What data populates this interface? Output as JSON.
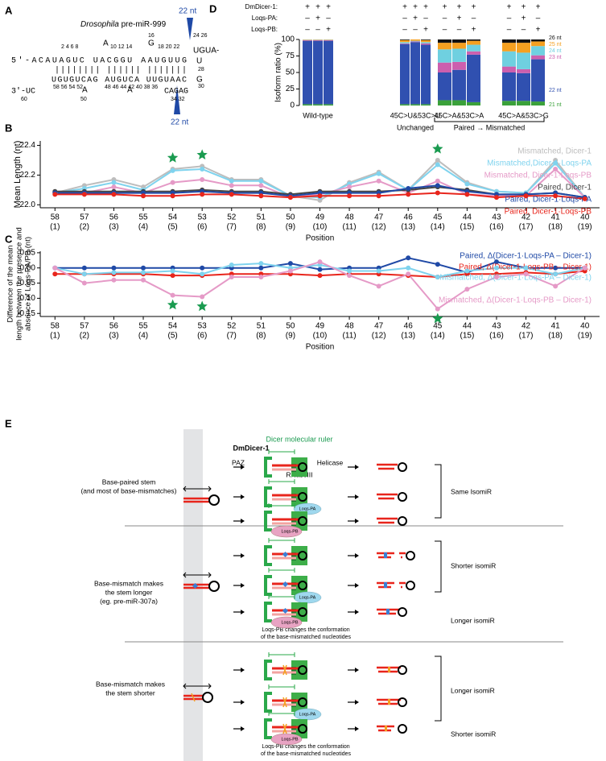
{
  "panel_labels": [
    "A",
    "B",
    "C",
    "D",
    "E"
  ],
  "panel_a": {
    "title_italic": "Drosophila",
    "title_rest": "pre-miR-999",
    "cut_top": "22 nt",
    "cut_bottom": "22 nt",
    "num_16": "16",
    "num_24_26": "24  26",
    "nums_top_1": "2    4    6    8",
    "bulge_top_1": "A",
    "nums_top_2": "10   12   14",
    "bulge_top_2": "G",
    "nums_top_3": "18   20   22",
    "loop_top": "UGUA-",
    "strand_5": "5'-ACAUAGUC UACGGU AAUGUUG",
    "pairs": "|||||||| |||||| |||||||",
    "strand_3": "UGUGUCAG AUGUCA UUGUAAC",
    "end_3": "3'-UC",
    "loop_u1": "U",
    "num_28": "28",
    "loop_g": "G",
    "num_30": "30",
    "bulge_bottom_1": "A",
    "bulge_bottom_2": "A",
    "tail_bottom": "CAGAG",
    "nums_bottom_1": "58 56 54 52",
    "num_60": "60",
    "num_50": "50",
    "nums_bottom_2": "48 46 44 42 40 38 36",
    "nums_bottom_3": "34 32"
  },
  "chart_data": [
    {
      "type": "line",
      "ylabel": [
        "Mean Length (nt)"
      ],
      "xlabel": "Position",
      "categories": [
        "58",
        "57",
        "56",
        "55",
        "54",
        "53",
        "52",
        "51",
        "50",
        "49",
        "48",
        "47",
        "46",
        "45",
        "44",
        "43",
        "42",
        "41",
        "40"
      ],
      "category_sublabels": [
        "(1)",
        "(2)",
        "(3)",
        "(4)",
        "(5)",
        "(6)",
        "(7)",
        "(8)",
        "(9)",
        "(10)",
        "(11)",
        "(12)",
        "(13)",
        "(14)",
        "(15)",
        "(16)",
        "(17)",
        "(18)",
        "(19)"
      ],
      "ylim": [
        21.98,
        22.43
      ],
      "yticks": [
        {
          "value": 22.0,
          "label": "22.0"
        },
        {
          "value": 22.2,
          "label": "22.2"
        },
        {
          "value": 22.4,
          "label": "22.4"
        }
      ],
      "stars": [
        "54",
        "53",
        "45"
      ],
      "star_color": "#1a9b50",
      "series": [
        {
          "name": "Mismatched, Dicer-1",
          "color": "#bdbdbd",
          "values": [
            22.08,
            22.13,
            22.17,
            22.12,
            22.24,
            22.26,
            22.17,
            22.17,
            22.06,
            22.03,
            22.15,
            22.22,
            22.1,
            22.3,
            22.15,
            22.09,
            22.08,
            22.3,
            22.05
          ]
        },
        {
          "name": "Mismatched,Dicer-1·Loqs-PA",
          "color": "#7fd3ee",
          "values": [
            22.08,
            22.11,
            22.15,
            22.1,
            22.23,
            22.24,
            22.16,
            22.16,
            22.06,
            22.05,
            22.14,
            22.21,
            22.1,
            22.27,
            22.14,
            22.09,
            22.08,
            22.28,
            22.05
          ]
        },
        {
          "name": "Mismatched, Dicer-1·Loqs-PB",
          "color": "#e59ac7",
          "values": [
            22.08,
            22.08,
            22.12,
            22.08,
            22.15,
            22.17,
            22.13,
            22.13,
            22.05,
            22.07,
            22.12,
            22.16,
            22.08,
            22.16,
            22.07,
            22.06,
            22.06,
            22.24,
            22.05
          ]
        },
        {
          "name": "Paired, Dicer-1",
          "color": "#444444",
          "values": [
            22.09,
            22.09,
            22.09,
            22.09,
            22.09,
            22.1,
            22.09,
            22.09,
            22.07,
            22.09,
            22.09,
            22.09,
            22.1,
            22.12,
            22.1,
            22.07,
            22.07,
            22.08,
            22.05
          ]
        },
        {
          "name": "Paired, Dicer-1·Loqs-PA",
          "color": "#1f49a6",
          "values": [
            22.08,
            22.08,
            22.08,
            22.08,
            22.08,
            22.09,
            22.08,
            22.08,
            22.06,
            22.08,
            22.08,
            22.08,
            22.11,
            22.13,
            22.09,
            22.07,
            22.07,
            22.08,
            22.05
          ]
        },
        {
          "name": "Paired, Dicer-1·Loqs-PB",
          "color": "#e8251c",
          "values": [
            22.07,
            22.07,
            22.07,
            22.06,
            22.06,
            22.07,
            22.07,
            22.06,
            22.05,
            22.06,
            22.06,
            22.06,
            22.07,
            22.08,
            22.07,
            22.05,
            22.06,
            22.06,
            22.04
          ]
        }
      ]
    },
    {
      "type": "line",
      "ylabel": [
        "Difference of the mean",
        "length between the presence and",
        "absence of Loqs-PA/PB (nt)"
      ],
      "xlabel": "Position",
      "categories": [
        "58",
        "57",
        "56",
        "55",
        "54",
        "53",
        "52",
        "51",
        "50",
        "49",
        "48",
        "47",
        "46",
        "45",
        "44",
        "43",
        "42",
        "41",
        "40"
      ],
      "category_sublabels": [
        "(1)",
        "(2)",
        "(3)",
        "(4)",
        "(5)",
        "(6)",
        "(7)",
        "(8)",
        "(9)",
        "(10)",
        "(11)",
        "(12)",
        "(13)",
        "(14)",
        "(15)",
        "(16)",
        "(17)",
        "(18)",
        "(19)"
      ],
      "ylim": [
        -0.16,
        0.055
      ],
      "yticks": [
        0.05,
        {
          "value": 0,
          "label": "0.00"
        },
        -0.05,
        {
          "value": -0.1,
          "label": "-0.10"
        },
        -0.15
      ],
      "stars": [
        "54",
        "53",
        "45"
      ],
      "star_color": "#1a9b50",
      "series": [
        {
          "name": "Paired, Δ(Dicer-1·Loqs-PA – Dicer-1)",
          "color": "#1f49a6",
          "values": [
            0,
            0,
            0,
            0,
            0,
            0,
            0,
            0,
            0.015,
            -0.005,
            0,
            0,
            0.033,
            0.012,
            -0.015,
            0.02,
            0,
            0,
            0
          ]
        },
        {
          "name": "Paired, Δ(Dicer-1·Loqs-PB – Dicer-1)",
          "color": "#e8251c",
          "values": [
            -0.02,
            -0.02,
            -0.02,
            -0.02,
            -0.025,
            -0.025,
            -0.02,
            -0.02,
            -0.02,
            -0.025,
            -0.02,
            -0.02,
            -0.025,
            -0.03,
            -0.02,
            -0.02,
            -0.015,
            -0.02,
            -0.01
          ]
        },
        {
          "name": "Mismatched, Δ(Dicer-1·Loqs-PA – Dicer-1)",
          "color": "#7fd3ee",
          "values": [
            0,
            -0.02,
            -0.015,
            -0.015,
            -0.01,
            -0.02,
            0.01,
            0.015,
            0,
            0.01,
            -0.01,
            -0.01,
            0,
            -0.03,
            -0.01,
            0,
            0,
            -0.02,
            0
          ]
        },
        {
          "name": "Mismatched, Δ(Dicer-1·Loqs-PB – Dicer-1)",
          "color": "#e59ac7",
          "values": [
            0,
            -0.05,
            -0.04,
            -0.04,
            -0.09,
            -0.095,
            -0.03,
            -0.03,
            -0.01,
            0.02,
            -0.025,
            -0.06,
            -0.02,
            -0.135,
            -0.07,
            -0.03,
            -0.02,
            -0.06,
            0
          ]
        }
      ]
    },
    {
      "type": "stacked-bar",
      "ylabel": "Isoform ratio (%)",
      "ylim": [
        0,
        100
      ],
      "yticks": [
        0,
        25,
        50,
        75,
        100
      ],
      "conditions": [
        {
          "label": "DmDicer-1:",
          "values": [
            "+",
            "+",
            "+",
            "+",
            "+",
            "+",
            "+",
            "+",
            "+",
            "+",
            "+",
            "+"
          ]
        },
        {
          "label": "Loqs-PA:",
          "values": [
            "–",
            "+",
            "–",
            "–",
            "+",
            "–",
            "–",
            "+",
            "–",
            "–",
            "+",
            "–"
          ]
        },
        {
          "label": "Loqs-PB:",
          "values": [
            "–",
            "–",
            "+",
            "–",
            "–",
            "+",
            "–",
            "–",
            "+",
            "–",
            "–",
            "+"
          ]
        }
      ],
      "groups": [
        {
          "name": "Wild-type"
        },
        {
          "name": "45C>U&53C>U",
          "sublabel": "Unchanged"
        },
        {
          "name": "45C>A&53C>A"
        },
        {
          "name": "45C>A&53C>G"
        }
      ],
      "bracket_label": "Paired → Mismatched",
      "series": [
        {
          "name": "21 nt",
          "color": "#3aa13a",
          "values": [
            2,
            2,
            2,
            2,
            2,
            2,
            8,
            8,
            5,
            7,
            7,
            6
          ]
        },
        {
          "name": "22 nt",
          "color": "#3050b0",
          "values": [
            96,
            96,
            96,
            91,
            94,
            90,
            42,
            46,
            72,
            43,
            42,
            64
          ]
        },
        {
          "name": "23 nt",
          "color": "#cc5fae",
          "values": [
            1,
            1,
            1,
            1,
            1,
            2,
            15,
            12,
            5,
            9,
            6,
            6
          ]
        },
        {
          "name": "24 nt",
          "color": "#6fd0e0",
          "values": [
            0.5,
            0.5,
            0.5,
            2,
            1,
            2,
            20,
            20,
            10,
            23,
            25,
            14
          ]
        },
        {
          "name": "25 nt",
          "color": "#f5a020",
          "values": [
            0.5,
            0.5,
            0.5,
            3,
            2,
            3,
            10,
            9,
            6,
            13,
            15,
            7
          ]
        },
        {
          "name": "26 nt",
          "color": "#111111",
          "values": [
            0,
            0,
            0,
            1,
            0,
            1,
            5,
            5,
            2,
            5,
            5,
            3
          ]
        }
      ]
    }
  ],
  "panel_e": {
    "ruler": "Dicer molecular ruler",
    "dicer": "DmDicer-1",
    "paz": "PAZ",
    "helicase": "Helicase",
    "rnase": "RNaseIII",
    "loqs_pa": "Loqs-PA",
    "loqs_pb": "Loqs-PB",
    "row1_a": "Base-paired stem",
    "row1_b": "(and most of base-mismatches)",
    "row1_result": "Same IsomiR",
    "row2_a": "Base-mismatch makes",
    "row2_b": "the stem longer",
    "row2_c": "(eg. pre-miR-307a)",
    "row2_result_1": "Shorter isomiR",
    "row2_result_2": "Longer isomiR",
    "note_a": "Loqs-PB changes the conformation",
    "note_b": "of the base-mismatched nucleotides",
    "row3_a": "Base-mismatch makes",
    "row3_b": "the stem shorter",
    "row3_result_1": "Longer isomiR",
    "row3_result_2": "Shorter isomiR"
  }
}
